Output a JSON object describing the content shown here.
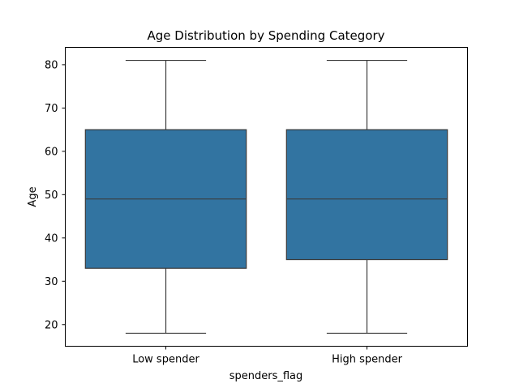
{
  "chart_data": {
    "type": "box",
    "title": "Age Distribution by Spending Category",
    "xlabel": "spenders_flag",
    "ylabel": "Age",
    "categories": [
      "Low spender",
      "High spender"
    ],
    "boxes": [
      {
        "category": "Low spender",
        "min": 18,
        "q1": 33,
        "median": 49,
        "q3": 65,
        "max": 81
      },
      {
        "category": "High spender",
        "min": 18,
        "q1": 35,
        "median": 49,
        "q3": 65,
        "max": 81
      }
    ],
    "ylim": [
      15,
      84
    ],
    "yticks": [
      20,
      30,
      40,
      50,
      60,
      70,
      80
    ],
    "grid": false,
    "colors": {
      "box_fill": "#3274a1",
      "line": "#3b3b3b",
      "axes": "#000000"
    }
  }
}
